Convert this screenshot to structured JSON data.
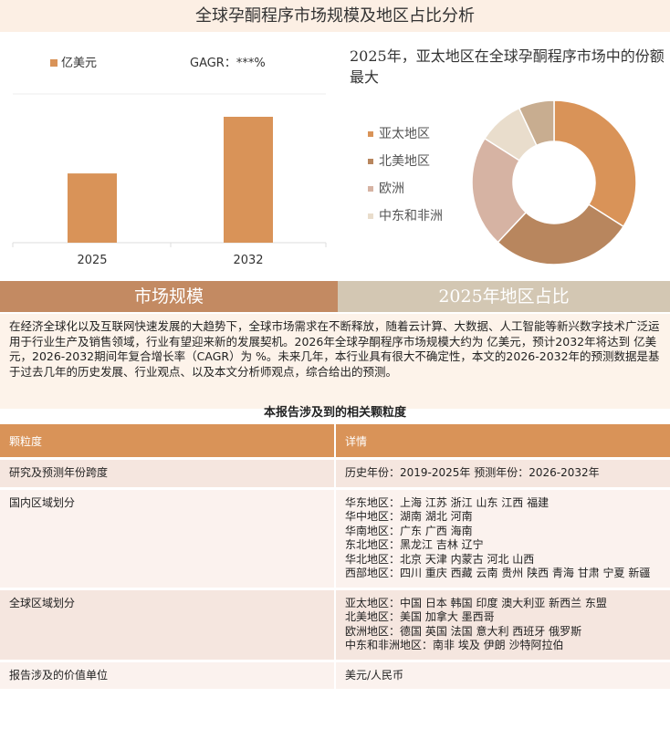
{
  "title": "全球孕酮程序市场规模及地区占比分析",
  "chart_data": [
    {
      "type": "bar",
      "categories": [
        "2025",
        "2032"
      ],
      "series": [
        {
          "name": "亿美元",
          "color": "#d99358",
          "values": [
            55,
            100
          ]
        }
      ],
      "annotation": "GAGR：***%"
    },
    {
      "type": "pie",
      "title": "2025年，亚太地区在全球孕酮程序市场中的份额最大",
      "categories": [
        "亚太地区",
        "北美地区",
        "欧洲",
        "中东和非洲",
        null
      ],
      "values": [
        34,
        28,
        22,
        9,
        7
      ],
      "colors": [
        "#d99358",
        "#b8865e",
        "#d6b3a3",
        "#e9ddcc",
        "#c8ad90"
      ]
    }
  ],
  "sections": [
    "市场规模",
    "2025年地区占比"
  ],
  "paragraph": "在经济全球化以及互联网快速发展的大趋势下，全球市场需求在不断释放，随着云计算、大数据、人工智能等新兴数字技术广泛运用于行业生产及销售领域，行业有望迎来新的发展契机。2026年全球孕酮程序市场规模大约为 亿美元，预计2032年将达到 亿美元，2026-2032期间年复合增长率（CAGR）为 %。未来几年，本行业具有很大不确定性，本文的2026-2032年的预测数据是基于过去几年的历史发展、行业观点、以及本文分析师观点，综合给出的预测。",
  "table": {
    "title": "本报告涉及到的相关颗粒度",
    "header": [
      "颗粒度",
      "详情"
    ],
    "rows": [
      [
        "研究及预测年份跨度",
        [
          "历史年份：2019-2025年 预测年份：2026-2032年"
        ]
      ],
      [
        "国内区域划分",
        [
          "华东地区：上海  江苏  浙江  山东  江西  福建",
          "华中地区：湖南  湖北  河南",
          "华南地区：广东  广西  海南",
          "东北地区：黑龙江  吉林  辽宁",
          "华北地区：北京  天津  内蒙古  河北  山西",
          "西部地区：四川  重庆  西藏  云南  贵州  陕西  青海  甘肃  宁夏  新疆"
        ]
      ],
      [
        "全球区域划分",
        [
          "亚太地区：中国  日本  韩国  印度  澳大利亚  新西兰  东盟",
          "北美地区：美国  加拿大  墨西哥",
          "欧洲地区：德国  英国  法国  意大利  西班牙  俄罗斯",
          "中东和非洲地区：南非  埃及  伊朗  沙特阿拉伯"
        ]
      ],
      [
        "报告涉及的价值单位",
        [
          "美元/人民币"
        ]
      ]
    ]
  }
}
